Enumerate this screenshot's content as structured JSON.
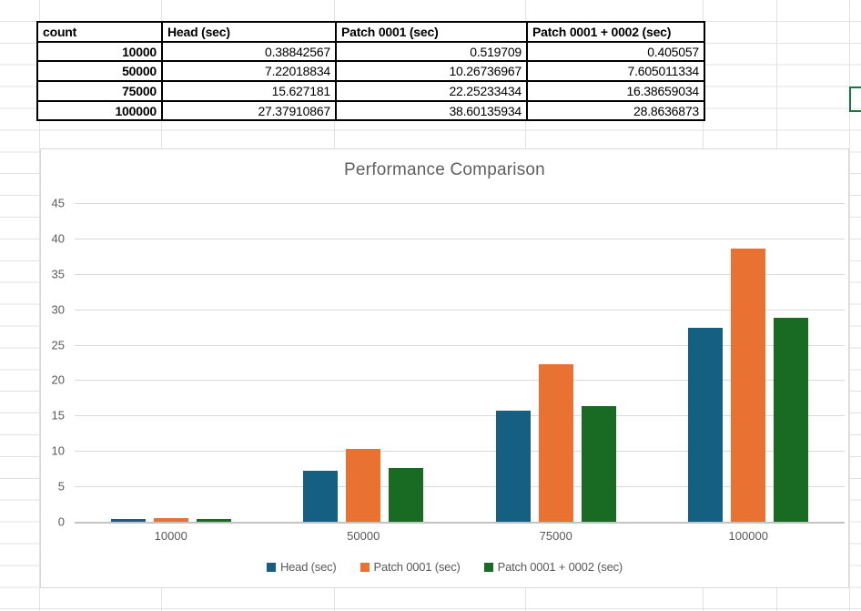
{
  "table": {
    "headers": [
      "count",
      "Head (sec)",
      "Patch 0001 (sec)",
      "Patch 0001 + 0002 (sec)"
    ],
    "rows": [
      [
        "10000",
        "0.38842567",
        "0.519709",
        "0.405057"
      ],
      [
        "50000",
        "7.22018834",
        "10.26736967",
        "7.605011334"
      ],
      [
        "75000",
        "15.627181",
        "22.25233434",
        "16.38659034"
      ],
      [
        "100000",
        "27.37910867",
        "38.60135934",
        "28.8636873"
      ]
    ]
  },
  "chart_data": {
    "type": "bar",
    "title": "Performance Comparison",
    "categories": [
      "10000",
      "50000",
      "75000",
      "100000"
    ],
    "series": [
      {
        "name": "Head (sec)",
        "color": "#156082",
        "values": [
          0.38842567,
          7.22018834,
          15.627181,
          27.37910867
        ]
      },
      {
        "name": "Patch 0001 (sec)",
        "color": "#E97132",
        "values": [
          0.519709,
          10.26736967,
          22.25233434,
          38.60135934
        ]
      },
      {
        "name": "Patch 0001 + 0002 (sec)",
        "color": "#196B24",
        "values": [
          0.405057,
          7.605011334,
          16.38659034,
          28.8636873
        ]
      }
    ],
    "xlabel": "",
    "ylabel": "",
    "ylim": [
      0,
      45
    ],
    "yticks": [
      0,
      5,
      10,
      15,
      20,
      25,
      30,
      35,
      40,
      45
    ],
    "grid": true,
    "legend_position": "bottom"
  },
  "colors": {
    "accent_blue": "#156082",
    "accent_orange": "#E97132",
    "accent_green": "#196B24",
    "active_cell_border": "#107C41",
    "chart_gridline": "#D9D9D9",
    "sheet_gridline": "#E2E2E2",
    "chart_text": "#595959"
  }
}
